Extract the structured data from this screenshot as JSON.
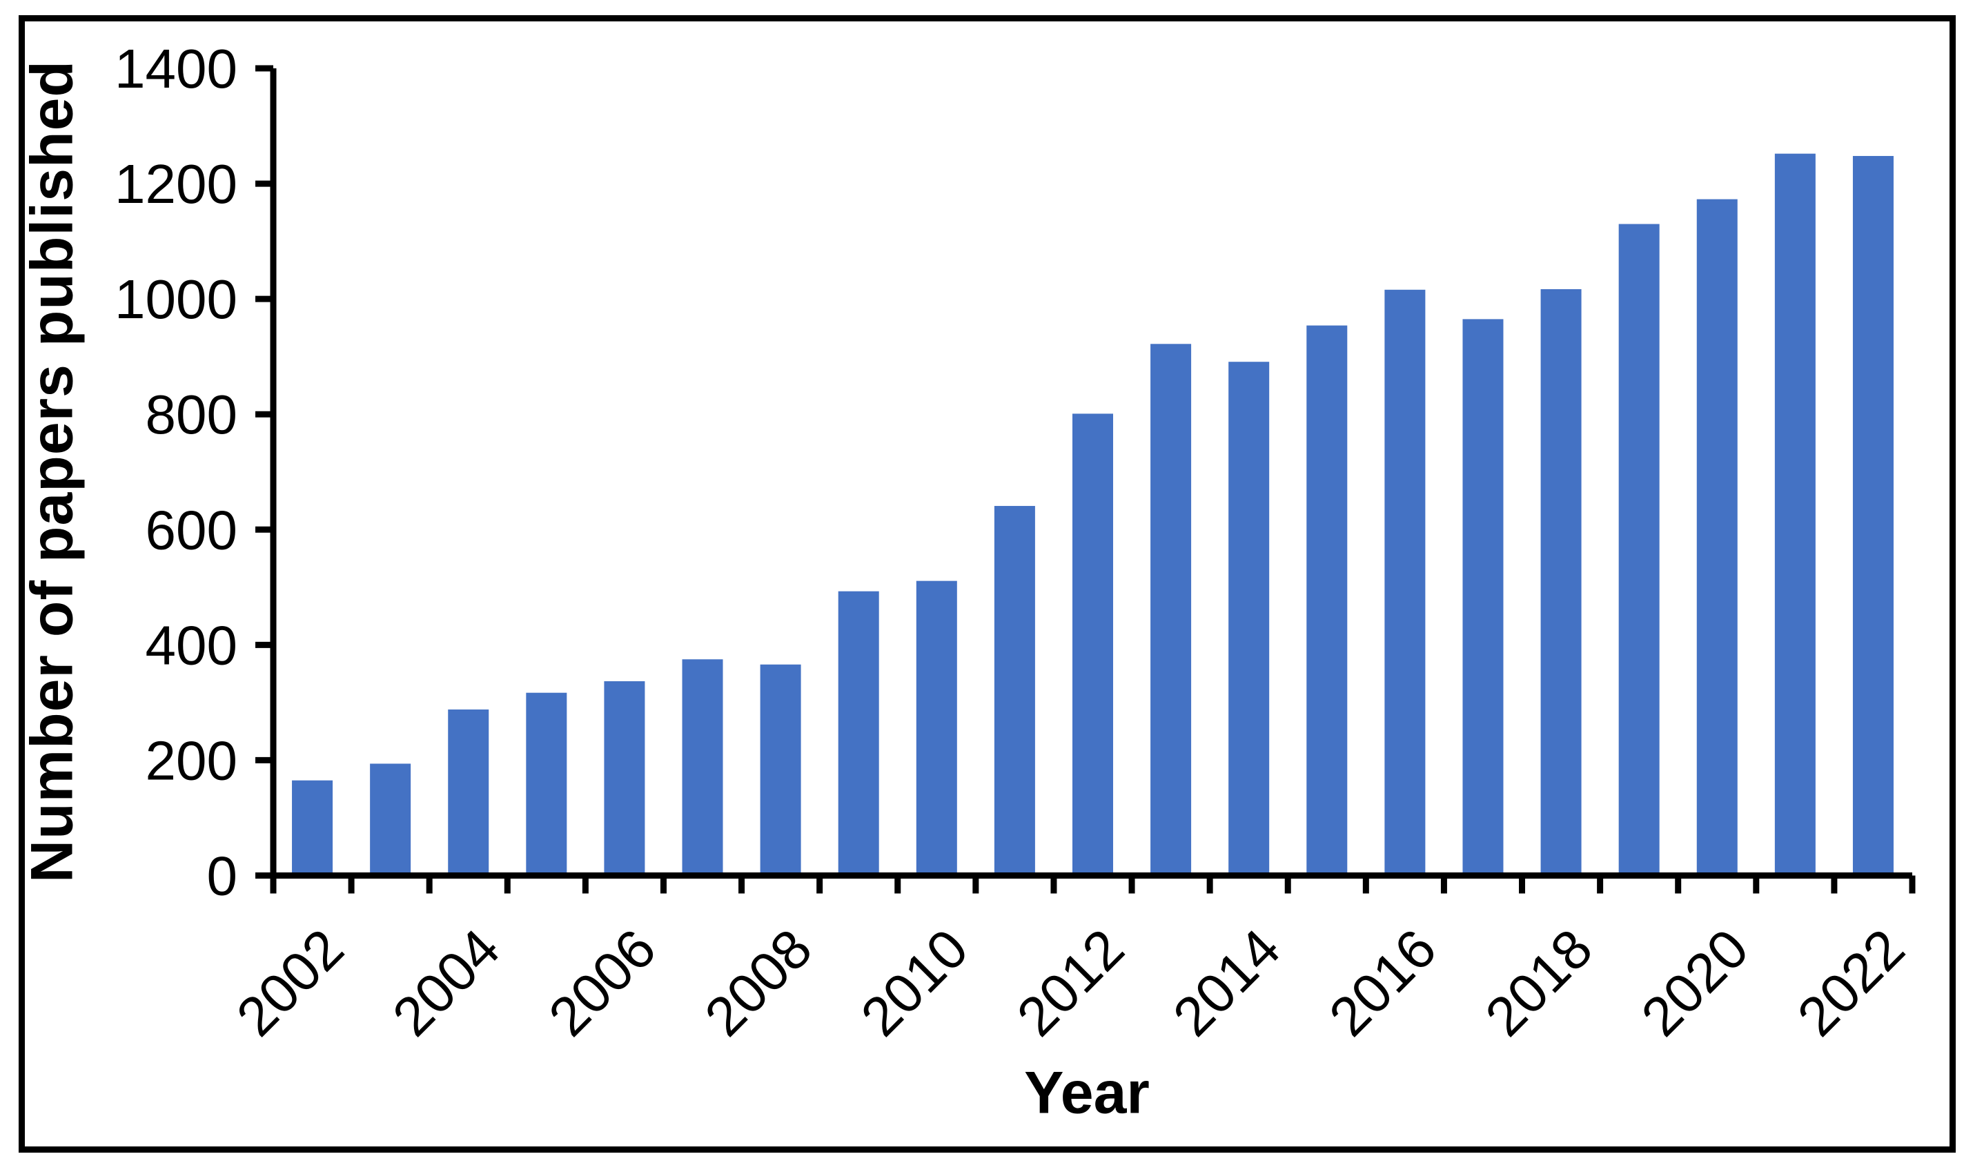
{
  "chart_data": {
    "type": "bar",
    "title": "",
    "xlabel": "Year",
    "ylabel": "Number of papers published",
    "categories": [
      2002,
      2003,
      2004,
      2005,
      2006,
      2007,
      2008,
      2009,
      2010,
      2011,
      2012,
      2013,
      2014,
      2015,
      2016,
      2017,
      2018,
      2019,
      2020,
      2021,
      2022
    ],
    "values": [
      165,
      194,
      288,
      317,
      337,
      375,
      366,
      493,
      511,
      641,
      801,
      922,
      891,
      954,
      1016,
      965,
      1017,
      1130,
      1173,
      1252,
      1248
    ],
    "x_tick_labels": [
      "2002",
      "2004",
      "2006",
      "2008",
      "2010",
      "2012",
      "2014",
      "2016",
      "2018",
      "2020",
      "2022"
    ],
    "y_ticks": [
      0,
      200,
      400,
      600,
      800,
      1000,
      1200,
      1400
    ],
    "ylim": [
      0,
      1400
    ],
    "grid": false,
    "legend": null,
    "bar_color": "#4472C4",
    "axis_color": "#000000",
    "frame_color": "#000000",
    "background": "#FFFFFF"
  }
}
